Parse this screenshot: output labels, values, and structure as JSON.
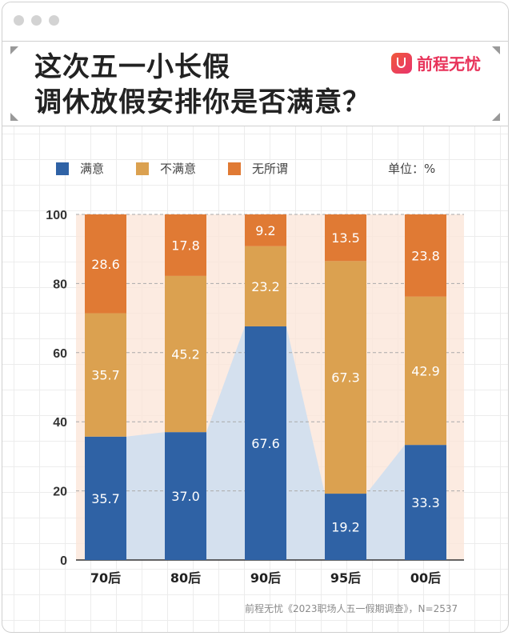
{
  "title_lines": [
    "这次五一小长假",
    "调休放假安排你是否满意？"
  ],
  "logo_text": "前程无忧",
  "unit": "单位：%",
  "source": "前程无忧《2023职场人五一假期调查》，N=2537",
  "colors": {
    "satisfied": "#2f62a5",
    "unsatisfied": "#dba150",
    "indifferent": "#e07a34",
    "blue_bg": "#d4e0ee",
    "peach_bg": "#fbe6da"
  },
  "chart_data": {
    "type": "bar",
    "stacked": true,
    "categories": [
      "70后",
      "80后",
      "90后",
      "95后",
      "00后"
    ],
    "series": [
      {
        "name": "满意",
        "values": [
          35.7,
          37.0,
          67.6,
          19.2,
          33.3
        ]
      },
      {
        "name": "不满意",
        "values": [
          35.7,
          45.2,
          23.2,
          67.3,
          42.9
        ]
      },
      {
        "name": "无所谓",
        "values": [
          28.6,
          17.8,
          9.2,
          13.5,
          23.8
        ]
      }
    ],
    "ylim": [
      0,
      100
    ],
    "yticks": [
      0,
      20,
      40,
      60,
      80,
      100
    ],
    "legend": "top-left",
    "grid": true
  }
}
